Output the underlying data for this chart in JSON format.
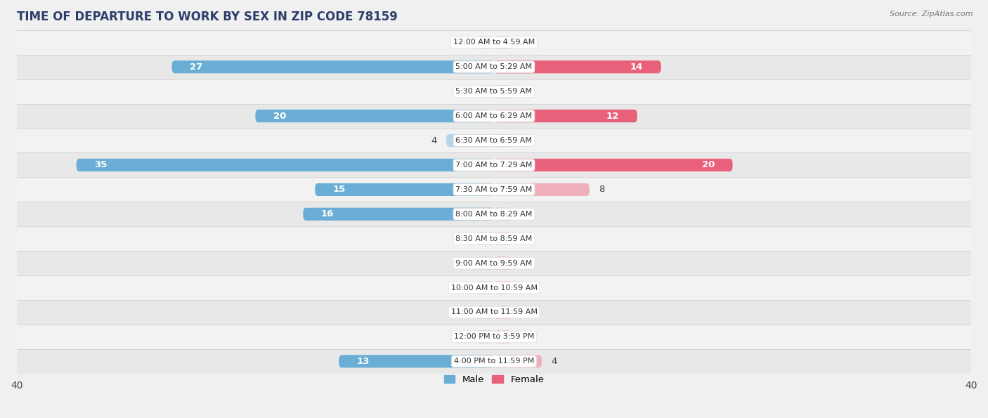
{
  "title": "TIME OF DEPARTURE TO WORK BY SEX IN ZIP CODE 78159",
  "source": "Source: ZipAtlas.com",
  "categories": [
    "12:00 AM to 4:59 AM",
    "5:00 AM to 5:29 AM",
    "5:30 AM to 5:59 AM",
    "6:00 AM to 6:29 AM",
    "6:30 AM to 6:59 AM",
    "7:00 AM to 7:29 AM",
    "7:30 AM to 7:59 AM",
    "8:00 AM to 8:29 AM",
    "8:30 AM to 8:59 AM",
    "9:00 AM to 9:59 AM",
    "10:00 AM to 10:59 AM",
    "11:00 AM to 11:59 AM",
    "12:00 PM to 3:59 PM",
    "4:00 PM to 11:59 PM"
  ],
  "male": [
    0,
    27,
    1,
    20,
    4,
    35,
    15,
    16,
    0,
    0,
    0,
    0,
    0,
    13
  ],
  "female": [
    0,
    14,
    0,
    12,
    0,
    20,
    8,
    0,
    0,
    0,
    0,
    0,
    0,
    4
  ],
  "male_color_strong": "#6aaed6",
  "male_color_light": "#b8d4e8",
  "female_color_strong": "#e8607a",
  "female_color_light": "#f0b0bb",
  "bar_height": 0.52,
  "xlim": 40,
  "row_light": "#f2f2f2",
  "row_dark": "#e8e8e8",
  "label_fontsize": 9.5,
  "title_fontsize": 12,
  "category_fontsize": 8,
  "strong_threshold": 10
}
